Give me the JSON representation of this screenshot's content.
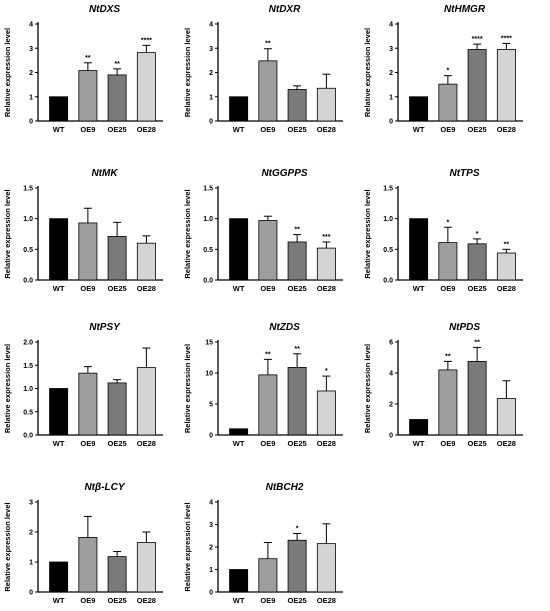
{
  "chart_data": [
    {
      "type": "bar",
      "title": "NtDXS",
      "ylabel": "Relative expression level",
      "ylim": [
        0,
        4
      ],
      "yticks": [
        0,
        1,
        2,
        3,
        4
      ],
      "categories": [
        "WT",
        "OE9",
        "OE25",
        "OE28"
      ],
      "values": [
        1.0,
        2.08,
        1.9,
        2.82
      ],
      "errors": [
        0,
        0.32,
        0.25,
        0.3
      ],
      "significance": [
        "",
        "**",
        "**",
        "****"
      ],
      "colors": [
        "#000000",
        "#9e9e9e",
        "#7a7a7a",
        "#d4d4d4"
      ]
    },
    {
      "type": "bar",
      "title": "NtDXR",
      "ylabel": "Relative expression level",
      "ylim": [
        0,
        4
      ],
      "yticks": [
        0,
        1,
        2,
        3,
        4
      ],
      "categories": [
        "WT",
        "OE9",
        "OE25",
        "OE28"
      ],
      "values": [
        1.0,
        2.48,
        1.3,
        1.35
      ],
      "errors": [
        0,
        0.5,
        0.15,
        0.58
      ],
      "significance": [
        "",
        "**",
        "",
        ""
      ],
      "colors": [
        "#000000",
        "#9e9e9e",
        "#7a7a7a",
        "#d4d4d4"
      ]
    },
    {
      "type": "bar",
      "title": "NtHMGR",
      "ylabel": "Relative expression level",
      "ylim": [
        0,
        4
      ],
      "yticks": [
        0,
        1,
        2,
        3,
        4
      ],
      "categories": [
        "WT",
        "OE9",
        "OE25",
        "OE28"
      ],
      "values": [
        1.0,
        1.52,
        2.95,
        2.95
      ],
      "errors": [
        0,
        0.35,
        0.22,
        0.25
      ],
      "significance": [
        "",
        "*",
        "****",
        "****"
      ],
      "colors": [
        "#000000",
        "#9e9e9e",
        "#7a7a7a",
        "#d4d4d4"
      ]
    },
    {
      "type": "bar",
      "title": "NtMK",
      "ylabel": "Relative expression level",
      "ylim": [
        0,
        1.5
      ],
      "yticks": [
        0.0,
        0.5,
        1.0,
        1.5
      ],
      "categories": [
        "WT",
        "OE9",
        "OE25",
        "OE28"
      ],
      "values": [
        1.0,
        0.93,
        0.71,
        0.6
      ],
      "errors": [
        0,
        0.24,
        0.23,
        0.12
      ],
      "significance": [
        "",
        "",
        "",
        ""
      ],
      "colors": [
        "#000000",
        "#9e9e9e",
        "#7a7a7a",
        "#d4d4d4"
      ]
    },
    {
      "type": "bar",
      "title": "NtGGPPS",
      "ylabel": "Relative expression level",
      "ylim": [
        0,
        1.5
      ],
      "yticks": [
        0.0,
        0.5,
        1.0,
        1.5
      ],
      "categories": [
        "WT",
        "OE9",
        "OE25",
        "OE28"
      ],
      "values": [
        1.0,
        0.97,
        0.62,
        0.52
      ],
      "errors": [
        0,
        0.07,
        0.12,
        0.1
      ],
      "significance": [
        "",
        "",
        "**",
        "***"
      ],
      "colors": [
        "#000000",
        "#9e9e9e",
        "#7a7a7a",
        "#d4d4d4"
      ]
    },
    {
      "type": "bar",
      "title": "NtTPS",
      "ylabel": "Relative expression level",
      "ylim": [
        0,
        1.5
      ],
      "yticks": [
        0.0,
        0.5,
        1.0,
        1.5
      ],
      "categories": [
        "WT",
        "OE9",
        "OE25",
        "OE28"
      ],
      "values": [
        1.0,
        0.61,
        0.59,
        0.44
      ],
      "errors": [
        0,
        0.25,
        0.08,
        0.06
      ],
      "significance": [
        "",
        "*",
        "*",
        "**"
      ],
      "colors": [
        "#000000",
        "#9e9e9e",
        "#7a7a7a",
        "#d4d4d4"
      ]
    },
    {
      "type": "bar",
      "title": "NtPSY",
      "ylabel": "Relative expression level",
      "ylim": [
        0,
        2.0
      ],
      "yticks": [
        0.0,
        0.5,
        1.0,
        1.5,
        2.0
      ],
      "categories": [
        "WT",
        "OE9",
        "OE25",
        "OE28"
      ],
      "values": [
        1.0,
        1.33,
        1.12,
        1.45
      ],
      "errors": [
        0,
        0.14,
        0.07,
        0.42
      ],
      "significance": [
        "",
        "",
        "",
        ""
      ],
      "colors": [
        "#000000",
        "#9e9e9e",
        "#7a7a7a",
        "#d4d4d4"
      ]
    },
    {
      "type": "bar",
      "title": "NtZDS",
      "ylabel": "Relative expression level",
      "ylim": [
        0,
        15
      ],
      "yticks": [
        0,
        5,
        10,
        15
      ],
      "categories": [
        "WT",
        "OE9",
        "OE25",
        "OE28"
      ],
      "values": [
        1.0,
        9.7,
        10.9,
        7.1
      ],
      "errors": [
        0,
        2.5,
        2.2,
        2.4
      ],
      "significance": [
        "",
        "**",
        "**",
        "*"
      ],
      "colors": [
        "#000000",
        "#9e9e9e",
        "#7a7a7a",
        "#d4d4d4"
      ]
    },
    {
      "type": "bar",
      "title": "NtPDS",
      "ylabel": "Relative expression level",
      "ylim": [
        0,
        6
      ],
      "yticks": [
        0,
        2,
        4,
        6
      ],
      "categories": [
        "WT",
        "OE9",
        "OE25",
        "OE28"
      ],
      "values": [
        1.0,
        4.2,
        4.75,
        2.35
      ],
      "errors": [
        0,
        0.55,
        0.9,
        1.15
      ],
      "significance": [
        "",
        "**",
        "**",
        ""
      ],
      "colors": [
        "#000000",
        "#9e9e9e",
        "#7a7a7a",
        "#d4d4d4"
      ]
    },
    {
      "type": "bar",
      "title": "Ntβ-LCY",
      "ylabel": "Relative expression level",
      "ylim": [
        0,
        3
      ],
      "yticks": [
        0,
        1,
        2,
        3
      ],
      "categories": [
        "WT",
        "OE9",
        "OE25",
        "OE28"
      ],
      "values": [
        1.0,
        1.82,
        1.18,
        1.65
      ],
      "errors": [
        0,
        0.7,
        0.17,
        0.35
      ],
      "significance": [
        "",
        "",
        "",
        ""
      ],
      "colors": [
        "#000000",
        "#9e9e9e",
        "#7a7a7a",
        "#d4d4d4"
      ]
    },
    {
      "type": "bar",
      "title": "NtBCH2",
      "ylabel": "Relative expression level",
      "ylim": [
        0,
        4
      ],
      "yticks": [
        0,
        1,
        2,
        3,
        4
      ],
      "categories": [
        "WT",
        "OE9",
        "OE25",
        "OE28"
      ],
      "values": [
        1.0,
        1.48,
        2.3,
        2.15
      ],
      "errors": [
        0,
        0.72,
        0.3,
        0.88
      ],
      "significance": [
        "",
        "",
        "*",
        ""
      ],
      "colors": [
        "#000000",
        "#9e9e9e",
        "#7a7a7a",
        "#d4d4d4"
      ]
    }
  ]
}
